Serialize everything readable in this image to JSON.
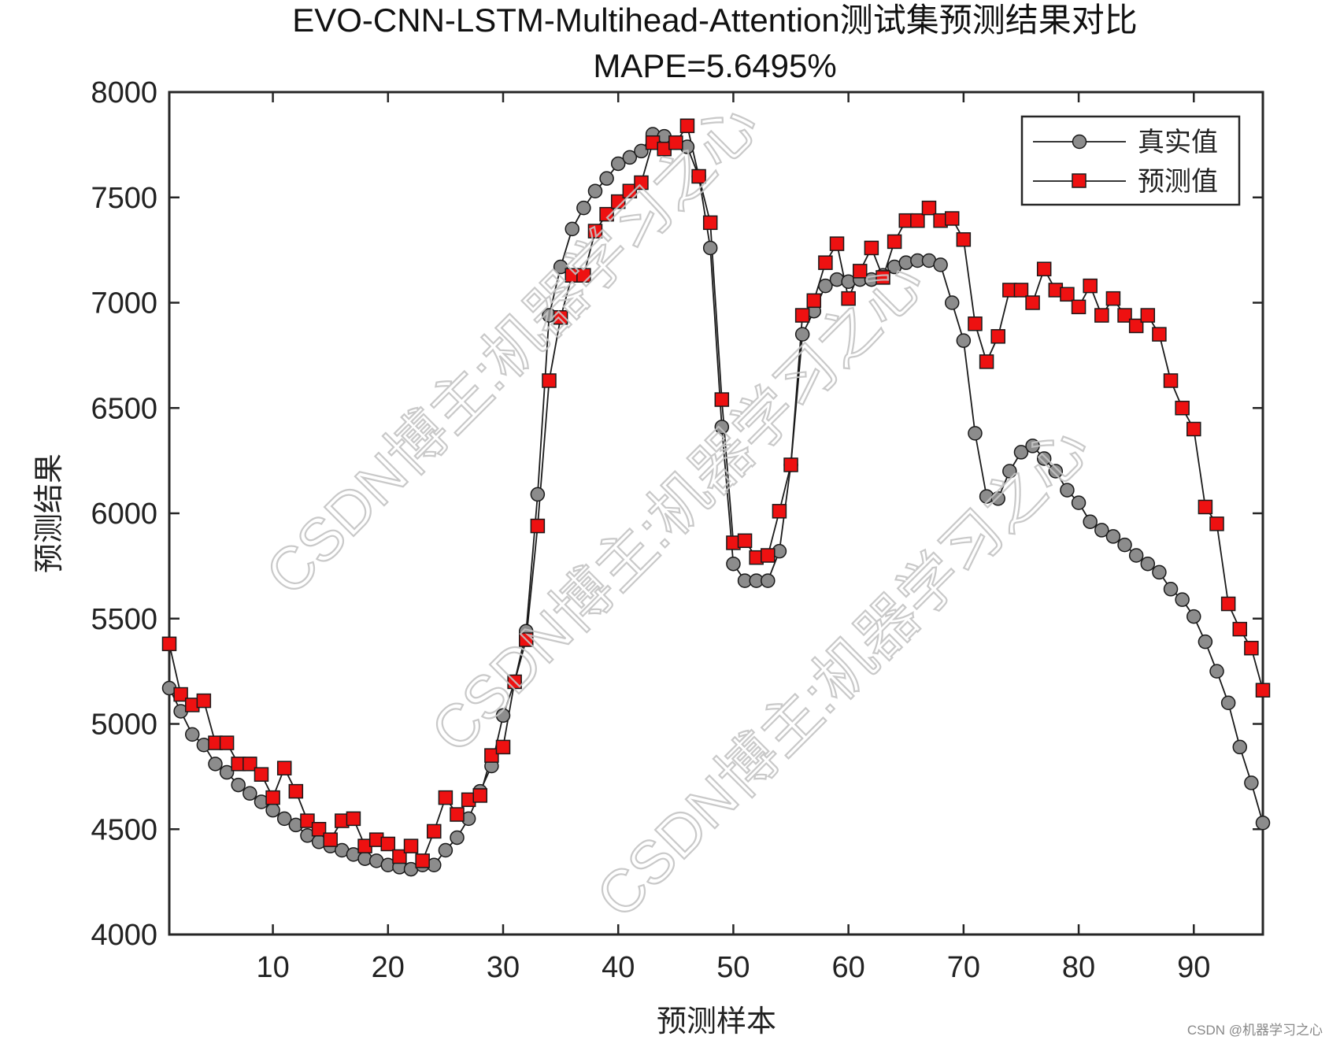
{
  "chart_data": {
    "type": "line",
    "title": "EVO-CNN-LSTM-Multihead-Attention测试集预测结果对比",
    "subtitle": "MAPE=5.6495%",
    "xlabel": "预测样本",
    "ylabel": "预测结果",
    "xlim": [
      1,
      96
    ],
    "ylim": [
      4000,
      8000
    ],
    "xticks": [
      10,
      20,
      30,
      40,
      50,
      60,
      70,
      80,
      90
    ],
    "yticks": [
      4000,
      4500,
      5000,
      5500,
      6000,
      6500,
      7000,
      7500,
      8000
    ],
    "grid": false,
    "legend_position": "top-right",
    "series": [
      {
        "name": "真实值",
        "marker": "circle",
        "color": "#8c8c8c",
        "x": [
          1,
          2,
          3,
          4,
          5,
          6,
          7,
          8,
          9,
          10,
          11,
          12,
          13,
          14,
          15,
          16,
          17,
          18,
          19,
          20,
          21,
          22,
          23,
          24,
          25,
          26,
          27,
          28,
          29,
          30,
          31,
          32,
          33,
          34,
          35,
          36,
          37,
          38,
          39,
          40,
          41,
          42,
          43,
          44,
          45,
          46,
          47,
          48,
          49,
          50,
          51,
          52,
          53,
          54,
          55,
          56,
          57,
          58,
          59,
          60,
          61,
          62,
          63,
          64,
          65,
          66,
          67,
          68,
          69,
          70,
          71,
          72,
          73,
          74,
          75,
          76,
          77,
          78,
          79,
          80,
          81,
          82,
          83,
          84,
          85,
          86,
          87,
          88,
          89,
          90,
          91,
          92,
          93,
          94,
          95,
          96
        ],
        "values": [
          5170,
          5060,
          4950,
          4900,
          4810,
          4770,
          4710,
          4670,
          4630,
          4590,
          4550,
          4520,
          4470,
          4440,
          4420,
          4400,
          4380,
          4360,
          4350,
          4330,
          4320,
          4310,
          4330,
          4330,
          4400,
          4460,
          4550,
          4680,
          4800,
          5040,
          5200,
          5440,
          6090,
          6940,
          7170,
          7350,
          7450,
          7530,
          7590,
          7660,
          7690,
          7720,
          7800,
          7790,
          7760,
          7740,
          7600,
          7260,
          6410,
          5760,
          5680,
          5680,
          5680,
          5820,
          6230,
          6850,
          6960,
          7080,
          7110,
          7100,
          7110,
          7110,
          7130,
          7170,
          7190,
          7200,
          7200,
          7180,
          7000,
          6820,
          6380,
          6080,
          6070,
          6200,
          6290,
          6320,
          6260,
          6200,
          6110,
          6050,
          5960,
          5920,
          5890,
          5850,
          5800,
          5760,
          5720,
          5640,
          5590,
          5510,
          5390,
          5250,
          5100,
          4890,
          4720,
          4530
        ]
      },
      {
        "name": "预测值",
        "marker": "square",
        "color": "#ee1111",
        "x": [
          1,
          2,
          3,
          4,
          5,
          6,
          7,
          8,
          9,
          10,
          11,
          12,
          13,
          14,
          15,
          16,
          17,
          18,
          19,
          20,
          21,
          22,
          23,
          24,
          25,
          26,
          27,
          28,
          29,
          30,
          31,
          32,
          33,
          34,
          35,
          36,
          37,
          38,
          39,
          40,
          41,
          42,
          43,
          44,
          45,
          46,
          47,
          48,
          49,
          50,
          51,
          52,
          53,
          54,
          55,
          56,
          57,
          58,
          59,
          60,
          61,
          62,
          63,
          64,
          65,
          66,
          67,
          68,
          69,
          70,
          71,
          72,
          73,
          74,
          75,
          76,
          77,
          78,
          79,
          80,
          81,
          82,
          83,
          84,
          85,
          86,
          87,
          88,
          89,
          90,
          91,
          92,
          93,
          94,
          95,
          96
        ],
        "values": [
          5380,
          5140,
          5090,
          5110,
          4910,
          4910,
          4810,
          4810,
          4760,
          4650,
          4790,
          4680,
          4540,
          4500,
          4450,
          4540,
          4550,
          4420,
          4450,
          4430,
          4370,
          4420,
          4350,
          4490,
          4650,
          4570,
          4640,
          4660,
          4850,
          4890,
          5200,
          5400,
          5940,
          6630,
          6930,
          7130,
          7130,
          7340,
          7420,
          7480,
          7530,
          7570,
          7760,
          7730,
          7760,
          7840,
          7600,
          7380,
          6540,
          5860,
          5870,
          5790,
          5800,
          6010,
          6230,
          6940,
          7010,
          7190,
          7280,
          7020,
          7150,
          7260,
          7120,
          7290,
          7390,
          7390,
          7450,
          7390,
          7400,
          7300,
          6900,
          6720,
          6840,
          7060,
          7060,
          7000,
          7160,
          7060,
          7040,
          6980,
          7080,
          6940,
          7020,
          6940,
          6890,
          6940,
          6850,
          6630,
          6500,
          6400,
          6030,
          5950,
          5570,
          5450,
          5360,
          5160
        ]
      }
    ]
  },
  "watermark": {
    "text": "CSDN博主:机器学习之心"
  },
  "footer": {
    "credit": "CSDN @机器学习之心"
  }
}
